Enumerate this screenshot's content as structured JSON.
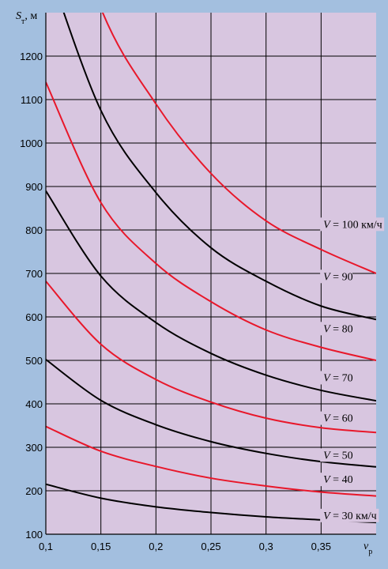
{
  "chart_data": {
    "type": "line",
    "title": "",
    "ylabel_symbol": "S",
    "ylabel_sub": "т",
    "ylabel_unit": ", м",
    "xlabel_symbol": "ν",
    "xlabel_sub": "p",
    "xlim": [
      0.1,
      0.4
    ],
    "ylim": [
      100,
      1300
    ],
    "grid": true,
    "x_ticks": [
      0.1,
      0.15,
      0.2,
      0.25,
      0.3,
      0.35
    ],
    "x_tick_labels": [
      "0,1",
      "0,15",
      "0,2",
      "0,25",
      "0,3",
      "0,35"
    ],
    "y_ticks": [
      100,
      200,
      300,
      400,
      500,
      600,
      700,
      800,
      900,
      1000,
      1100,
      1200
    ],
    "y_tick_labels": [
      "100",
      "200",
      "300",
      "400",
      "500",
      "600",
      "700",
      "800",
      "900",
      "1000",
      "1100",
      "1200"
    ],
    "colors": {
      "plot_bg": "#d8c6e0",
      "page_bg": "#a3bfdf",
      "red": "#e8172a",
      "black": "#000000",
      "grid": "#000000"
    },
    "x": [
      0.1,
      0.15,
      0.2,
      0.25,
      0.3,
      0.35,
      0.4
    ],
    "series": [
      {
        "name": "V = 30 км/ч",
        "color": "black",
        "values": [
          215,
          183,
          163,
          150,
          140,
          133,
          127
        ]
      },
      {
        "name": "V = 40",
        "color": "red",
        "values": [
          348,
          291,
          256,
          229,
          211,
          197,
          188
        ]
      },
      {
        "name": "V = 50",
        "color": "black",
        "values": [
          502,
          408,
          352,
          313,
          286,
          267,
          255
        ]
      },
      {
        "name": "V = 60",
        "color": "red",
        "values": [
          682,
          537,
          456,
          404,
          367,
          345,
          334
        ]
      },
      {
        "name": "V = 70",
        "color": "black",
        "values": [
          890,
          694,
          587,
          516,
          466,
          431,
          407
        ]
      },
      {
        "name": "V = 80",
        "color": "red",
        "values": [
          1140,
          863,
          723,
          635,
          570,
          530,
          500
        ]
      },
      {
        "name": "V = 90",
        "color": "black",
        "values": [
          1420,
          1075,
          886,
          759,
          682,
          625,
          594
        ]
      },
      {
        "name": "V = 100 км/ч",
        "color": "red",
        "values": [
          1715,
          1310,
          1090,
          930,
          821,
          755,
          700
        ]
      }
    ],
    "labels": [
      {
        "series": 0,
        "prefix": "V",
        "text": "= 30 км/ч",
        "x": 0.352,
        "y": 144
      },
      {
        "series": 1,
        "prefix": "V",
        "text": "= 40",
        "x": 0.352,
        "y": 227
      },
      {
        "series": 2,
        "prefix": "V",
        "text": "= 50",
        "x": 0.352,
        "y": 283
      },
      {
        "series": 3,
        "prefix": "V",
        "text": "= 60",
        "x": 0.352,
        "y": 368
      },
      {
        "series": 4,
        "prefix": "V",
        "text": "= 70",
        "x": 0.352,
        "y": 461
      },
      {
        "series": 5,
        "prefix": "V",
        "text": "= 80",
        "x": 0.352,
        "y": 574
      },
      {
        "series": 6,
        "prefix": "V",
        "text": "= 90",
        "x": 0.352,
        "y": 694
      },
      {
        "series": 7,
        "prefix": "V",
        "text": "= 100 км/ч",
        "x": 0.352,
        "y": 814
      }
    ]
  }
}
